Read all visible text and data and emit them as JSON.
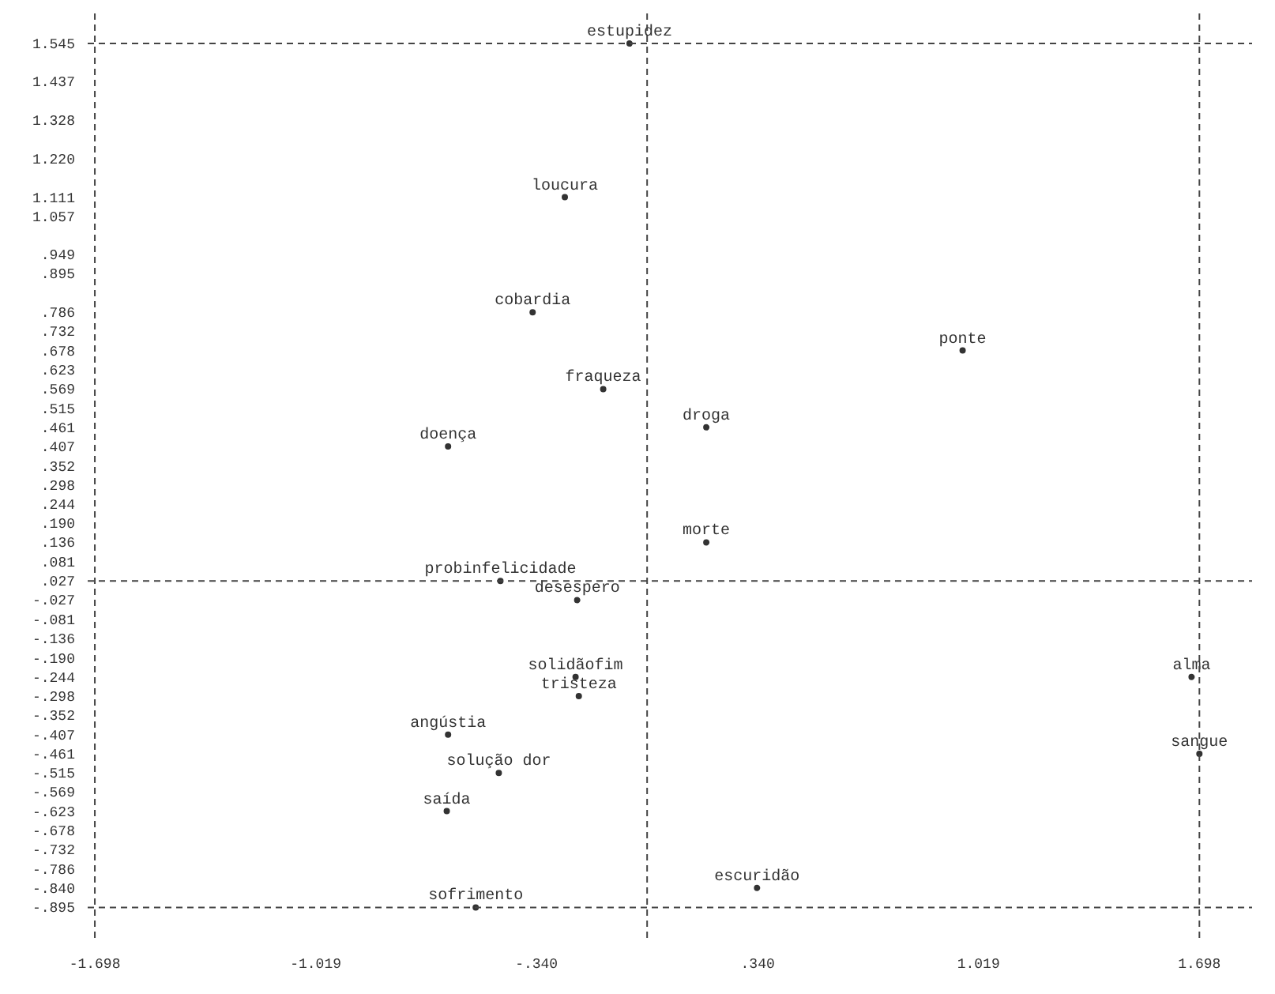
{
  "chart_data": {
    "type": "scatter",
    "marker": "circle",
    "xlim": [
      -1.72,
      1.86
    ],
    "ylim": [
      -0.99,
      1.63
    ],
    "xticks": [
      -1.698,
      -1.019,
      {
        "value": -0.34,
        "label": "-.340"
      },
      {
        "value": 0.34,
        "label": ".340"
      },
      1.019,
      1.698
    ],
    "yticks": [
      1.545,
      1.437,
      1.328,
      {
        "value": 1.22,
        "label": "1.220"
      },
      1.111,
      1.057,
      {
        "value": 0.949,
        "label": ".949"
      },
      {
        "value": 0.895,
        "label": ".895"
      },
      {
        "value": 0.786,
        "label": ".786"
      },
      {
        "value": 0.732,
        "label": ".732"
      },
      {
        "value": 0.678,
        "label": ".678"
      },
      {
        "value": 0.623,
        "label": ".623"
      },
      {
        "value": 0.569,
        "label": ".569"
      },
      {
        "value": 0.515,
        "label": ".515"
      },
      {
        "value": 0.461,
        "label": ".461"
      },
      {
        "value": 0.407,
        "label": ".407"
      },
      {
        "value": 0.352,
        "label": ".352"
      },
      {
        "value": 0.298,
        "label": ".298"
      },
      {
        "value": 0.244,
        "label": ".244"
      },
      {
        "value": 0.19,
        "label": ".190"
      },
      {
        "value": 0.136,
        "label": ".136"
      },
      {
        "value": 0.081,
        "label": ".081"
      },
      {
        "value": 0.027,
        "label": ".027"
      },
      {
        "value": -0.027,
        "label": "-.027"
      },
      {
        "value": -0.081,
        "label": "-.081"
      },
      {
        "value": -0.136,
        "label": "-.136"
      },
      {
        "value": -0.19,
        "label": "-.190"
      },
      {
        "value": -0.244,
        "label": "-.244"
      },
      {
        "value": -0.298,
        "label": "-.298"
      },
      {
        "value": -0.352,
        "label": "-.352"
      },
      {
        "value": -0.407,
        "label": "-.407"
      },
      {
        "value": -0.461,
        "label": "-.461"
      },
      {
        "value": -0.515,
        "label": "-.515"
      },
      {
        "value": -0.569,
        "label": "-.569"
      },
      {
        "value": -0.623,
        "label": "-.623"
      },
      {
        "value": -0.678,
        "label": "-.678"
      },
      {
        "value": -0.732,
        "label": "-.732"
      },
      {
        "value": -0.786,
        "label": "-.786"
      },
      {
        "value": -0.84,
        "label": "-.840"
      },
      {
        "value": -0.895,
        "label": "-.895"
      }
    ],
    "ref_lines": [
      {
        "axis": "y",
        "value": 1.545,
        "label": null,
        "line_style": "dashed"
      },
      {
        "axis": "y",
        "value": -0.895,
        "label": null,
        "line_style": "dashed"
      },
      {
        "axis": "y",
        "value": 0.027,
        "label": null,
        "line_style": "dashed"
      },
      {
        "axis": "x",
        "value": -1.698,
        "label": null,
        "line_style": "dashed"
      },
      {
        "axis": "x",
        "value": 1.698,
        "label": null,
        "line_style": "dashed"
      },
      {
        "axis": "x",
        "value": 0,
        "label": null,
        "line_style": "dashed"
      }
    ],
    "series": [
      {
        "color": "#333333",
        "x": [
          -0.054,
          -0.253,
          -0.352,
          -0.135,
          0.182,
          -0.612,
          0.97,
          0.182,
          -0.451,
          -0.215,
          -0.22,
          -0.21,
          -0.612,
          -0.456,
          -0.616,
          0.338,
          -0.527,
          1.674,
          1.698
        ],
        "values": [
          1.545,
          1.111,
          0.786,
          0.569,
          0.461,
          0.407,
          0.678,
          0.136,
          0.027,
          -0.027,
          -0.244,
          -0.298,
          -0.407,
          -0.515,
          -0.623,
          -0.84,
          -0.895,
          -0.244,
          -0.461
        ],
        "value_labels": [
          "estupidez",
          "loucura",
          "cobardia",
          "fraqueza",
          "droga",
          "doença",
          "ponte",
          "morte",
          "probinfelicidade",
          "desespero",
          "solidãofim",
          "tristeza",
          "angústia",
          "solução dor",
          "saída",
          "escuridão",
          "sofrimento",
          "alma",
          "sangue"
        ]
      }
    ]
  }
}
